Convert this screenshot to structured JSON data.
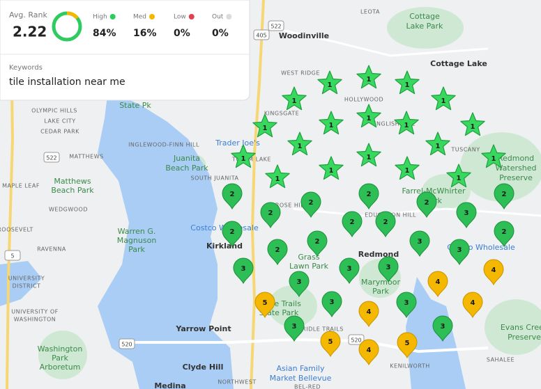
{
  "stats": {
    "avg_rank": {
      "label": "Avg. Rank",
      "value": "2.22"
    },
    "buckets": [
      {
        "label": "High",
        "value": "84%",
        "color": "#2ecc5e"
      },
      {
        "label": "Med",
        "value": "16%",
        "color": "#f5b800"
      },
      {
        "label": "Low",
        "value": "0%",
        "color": "#e0414f"
      },
      {
        "label": "Out",
        "value": "0%",
        "color": "#d9dcdf"
      }
    ]
  },
  "keywords": {
    "label": "Keywords",
    "text": "tile installation near me"
  },
  "map": {
    "labels": [
      [
        "Woodinville"
      ],
      [
        "Cottage",
        "Lake Park"
      ],
      [
        "Cottage Lake"
      ],
      [
        "WEST RIDGE"
      ],
      [
        "HOLLYWOOD"
      ],
      [
        "KINGSGATE"
      ],
      [
        "OLYMPIC HILLS"
      ],
      [
        "LAKE CITY"
      ],
      [
        "CEDAR PARK"
      ],
      [
        "State Pk"
      ],
      [
        "INGLEWOOD-FINN HILL"
      ],
      [
        "Trader Joe's"
      ],
      [
        "TOTEM LAKE"
      ],
      [
        "Juanita",
        "Beach Park"
      ],
      [
        "SOUTH JUANITA"
      ],
      [
        "MATTHEWS"
      ],
      [
        "Matthews",
        "Beach Park"
      ],
      [
        "MAPLE LEAF"
      ],
      [
        "WEDGWOOD"
      ],
      [
        "ROOSEVELT"
      ],
      [
        "RAVENNA"
      ],
      [
        "Warren G.",
        "Magnuson",
        "Park"
      ],
      [
        "Costco Wholesale"
      ],
      [
        "Kirkland"
      ],
      [
        "Redmond"
      ],
      [
        "Grass",
        "Lawn Park"
      ],
      [
        "Marymoor",
        "Park"
      ],
      [
        "Farrel-McWhirter",
        "Park"
      ],
      [
        "TUSCANY"
      ],
      [
        "Redmond",
        "Watershed",
        "Preserve"
      ],
      [
        "EDUCATION HILL"
      ],
      [
        "ROSE HILL"
      ],
      [
        "UNIVERSITY",
        "DISTRICT"
      ],
      [
        "UNIVERSITY OF",
        "WASHINGTON"
      ],
      [
        "Bridle Trails",
        "State Park"
      ],
      [
        "Yarrow Point"
      ],
      [
        "Washington",
        "Park",
        "Arboretum"
      ],
      [
        "Clyde Hill"
      ],
      [
        "Asian Family",
        "Market Bellevue"
      ],
      [
        "Evans Creek",
        "Preserve"
      ],
      [
        "KENILWORTH"
      ],
      [
        "SAHALEE"
      ],
      [
        "Medina"
      ],
      [
        "NORTHWEST"
      ],
      [
        "BEL-RED"
      ],
      [
        "ENGLISH HILL"
      ],
      [
        "LEOTA"
      ],
      [
        "Costco Wholesale"
      ],
      [
        "BRIDLE TRAILS"
      ]
    ],
    "road_shields": [
      "405",
      "522",
      "522",
      "520",
      "520",
      "5"
    ]
  },
  "markers": [
    1,
    1,
    1,
    1,
    1,
    1,
    1,
    1,
    1,
    1,
    1,
    1,
    1,
    1,
    1,
    1,
    1,
    1,
    1,
    2,
    2,
    2,
    2,
    2,
    2,
    2,
    2,
    2,
    2,
    2,
    2,
    3,
    3,
    3,
    3,
    3,
    3,
    3,
    3,
    3,
    3,
    3,
    4,
    4,
    4,
    4,
    4,
    5,
    5,
    5
  ]
}
